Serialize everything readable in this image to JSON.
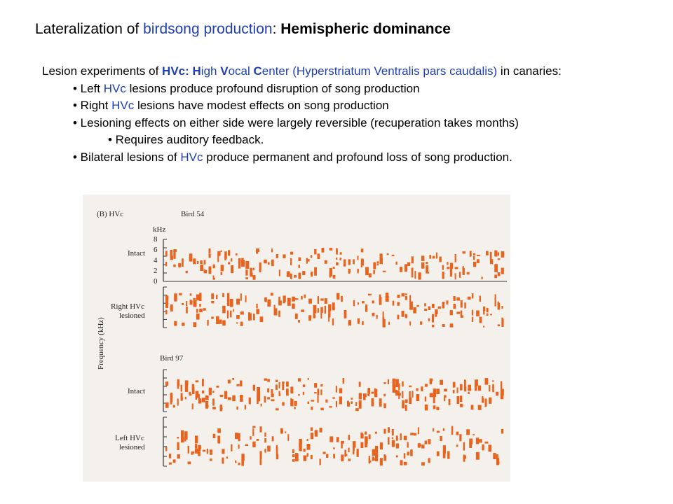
{
  "title": {
    "part1": "Lateralization of ",
    "part2": "birdsong production",
    "part3": ": ",
    "part4": "Hemispheric dominance"
  },
  "intro": {
    "t1": "Lesion experiments of ",
    "t2": "HVc: ",
    "h": "H",
    "igh": "igh ",
    "v": "V",
    "ocal": "ocal ",
    "c": "C",
    "enter": "enter ",
    "t3": "(Hyperstriatum Ventralis pars caudalis)",
    "t4": " in canaries:"
  },
  "bullets": [
    {
      "pre": "• Left ",
      "hl": "HVc",
      "post": " lesions produce profound disruption of song production"
    },
    {
      "pre": "• Right ",
      "hl": "HVc",
      "post": " lesions have modest effects on song production"
    },
    {
      "text": "• Lesioning effects on either side were largely reversible (recuperation takes months)"
    },
    {
      "text": "• Requires auditory feedback."
    },
    {
      "pre": "• Bilateral lesions of ",
      "hl": "HVc",
      "post": " produce permanent and profound loss of song production."
    }
  ],
  "figure": {
    "panel_label": "(B)  HVc",
    "bird1": "Bird 54",
    "bird2": "Bird 97",
    "khz": "kHz",
    "ticks": [
      "8",
      "6",
      "4",
      "2",
      "0"
    ],
    "y_axis": "Frequency (kHz)",
    "rows": [
      {
        "label1": "Intact",
        "label2": ""
      },
      {
        "label1": "Right HVc",
        "label2": "lesioned"
      },
      {
        "label1": "Intact",
        "label2": ""
      },
      {
        "label1": "Left HVc",
        "label2": "lesioned"
      }
    ],
    "ink_color": "#e8641e"
  }
}
